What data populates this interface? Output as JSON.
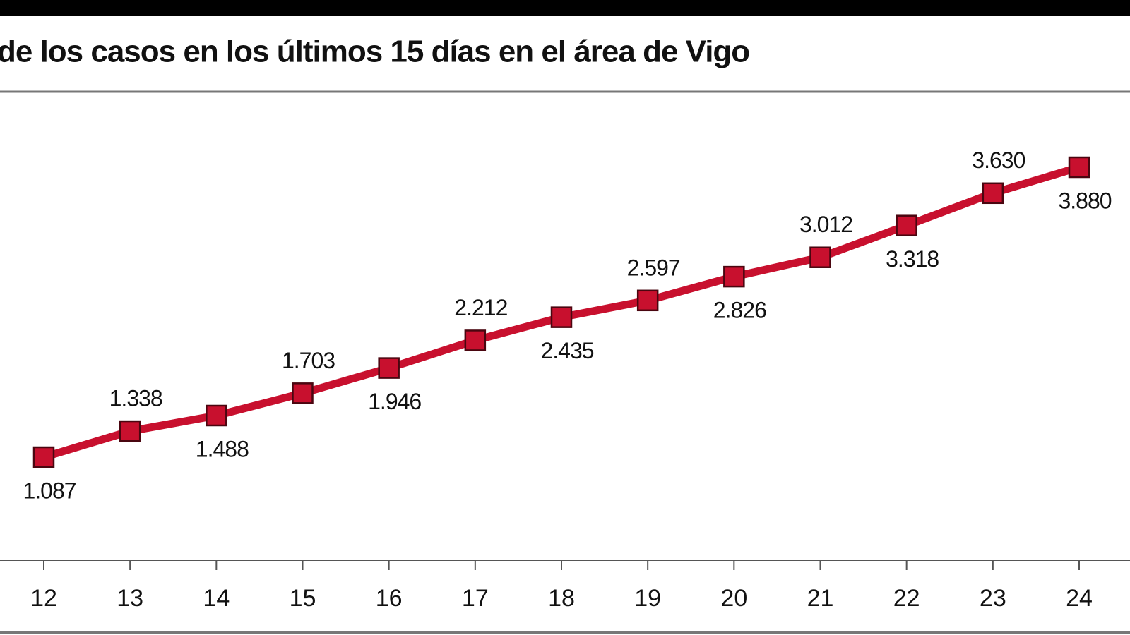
{
  "chart_data": {
    "type": "line",
    "title": "de los casos en los últimos 15 días en el área de Vigo",
    "categories": [
      "12",
      "13",
      "14",
      "15",
      "16",
      "17",
      "18",
      "19",
      "20",
      "21",
      "22",
      "23",
      "24"
    ],
    "values": [
      1087,
      1338,
      1488,
      1703,
      1946,
      2212,
      2435,
      2597,
      2826,
      3012,
      3318,
      3630,
      3880
    ],
    "value_labels": [
      "1.087",
      "1.338",
      "1.488",
      "1.703",
      "1.946",
      "2.212",
      "2.435",
      "2.597",
      "2.826",
      "3.012",
      "3.318",
      "3.630",
      "3.880"
    ],
    "color": "#c8102e"
  }
}
